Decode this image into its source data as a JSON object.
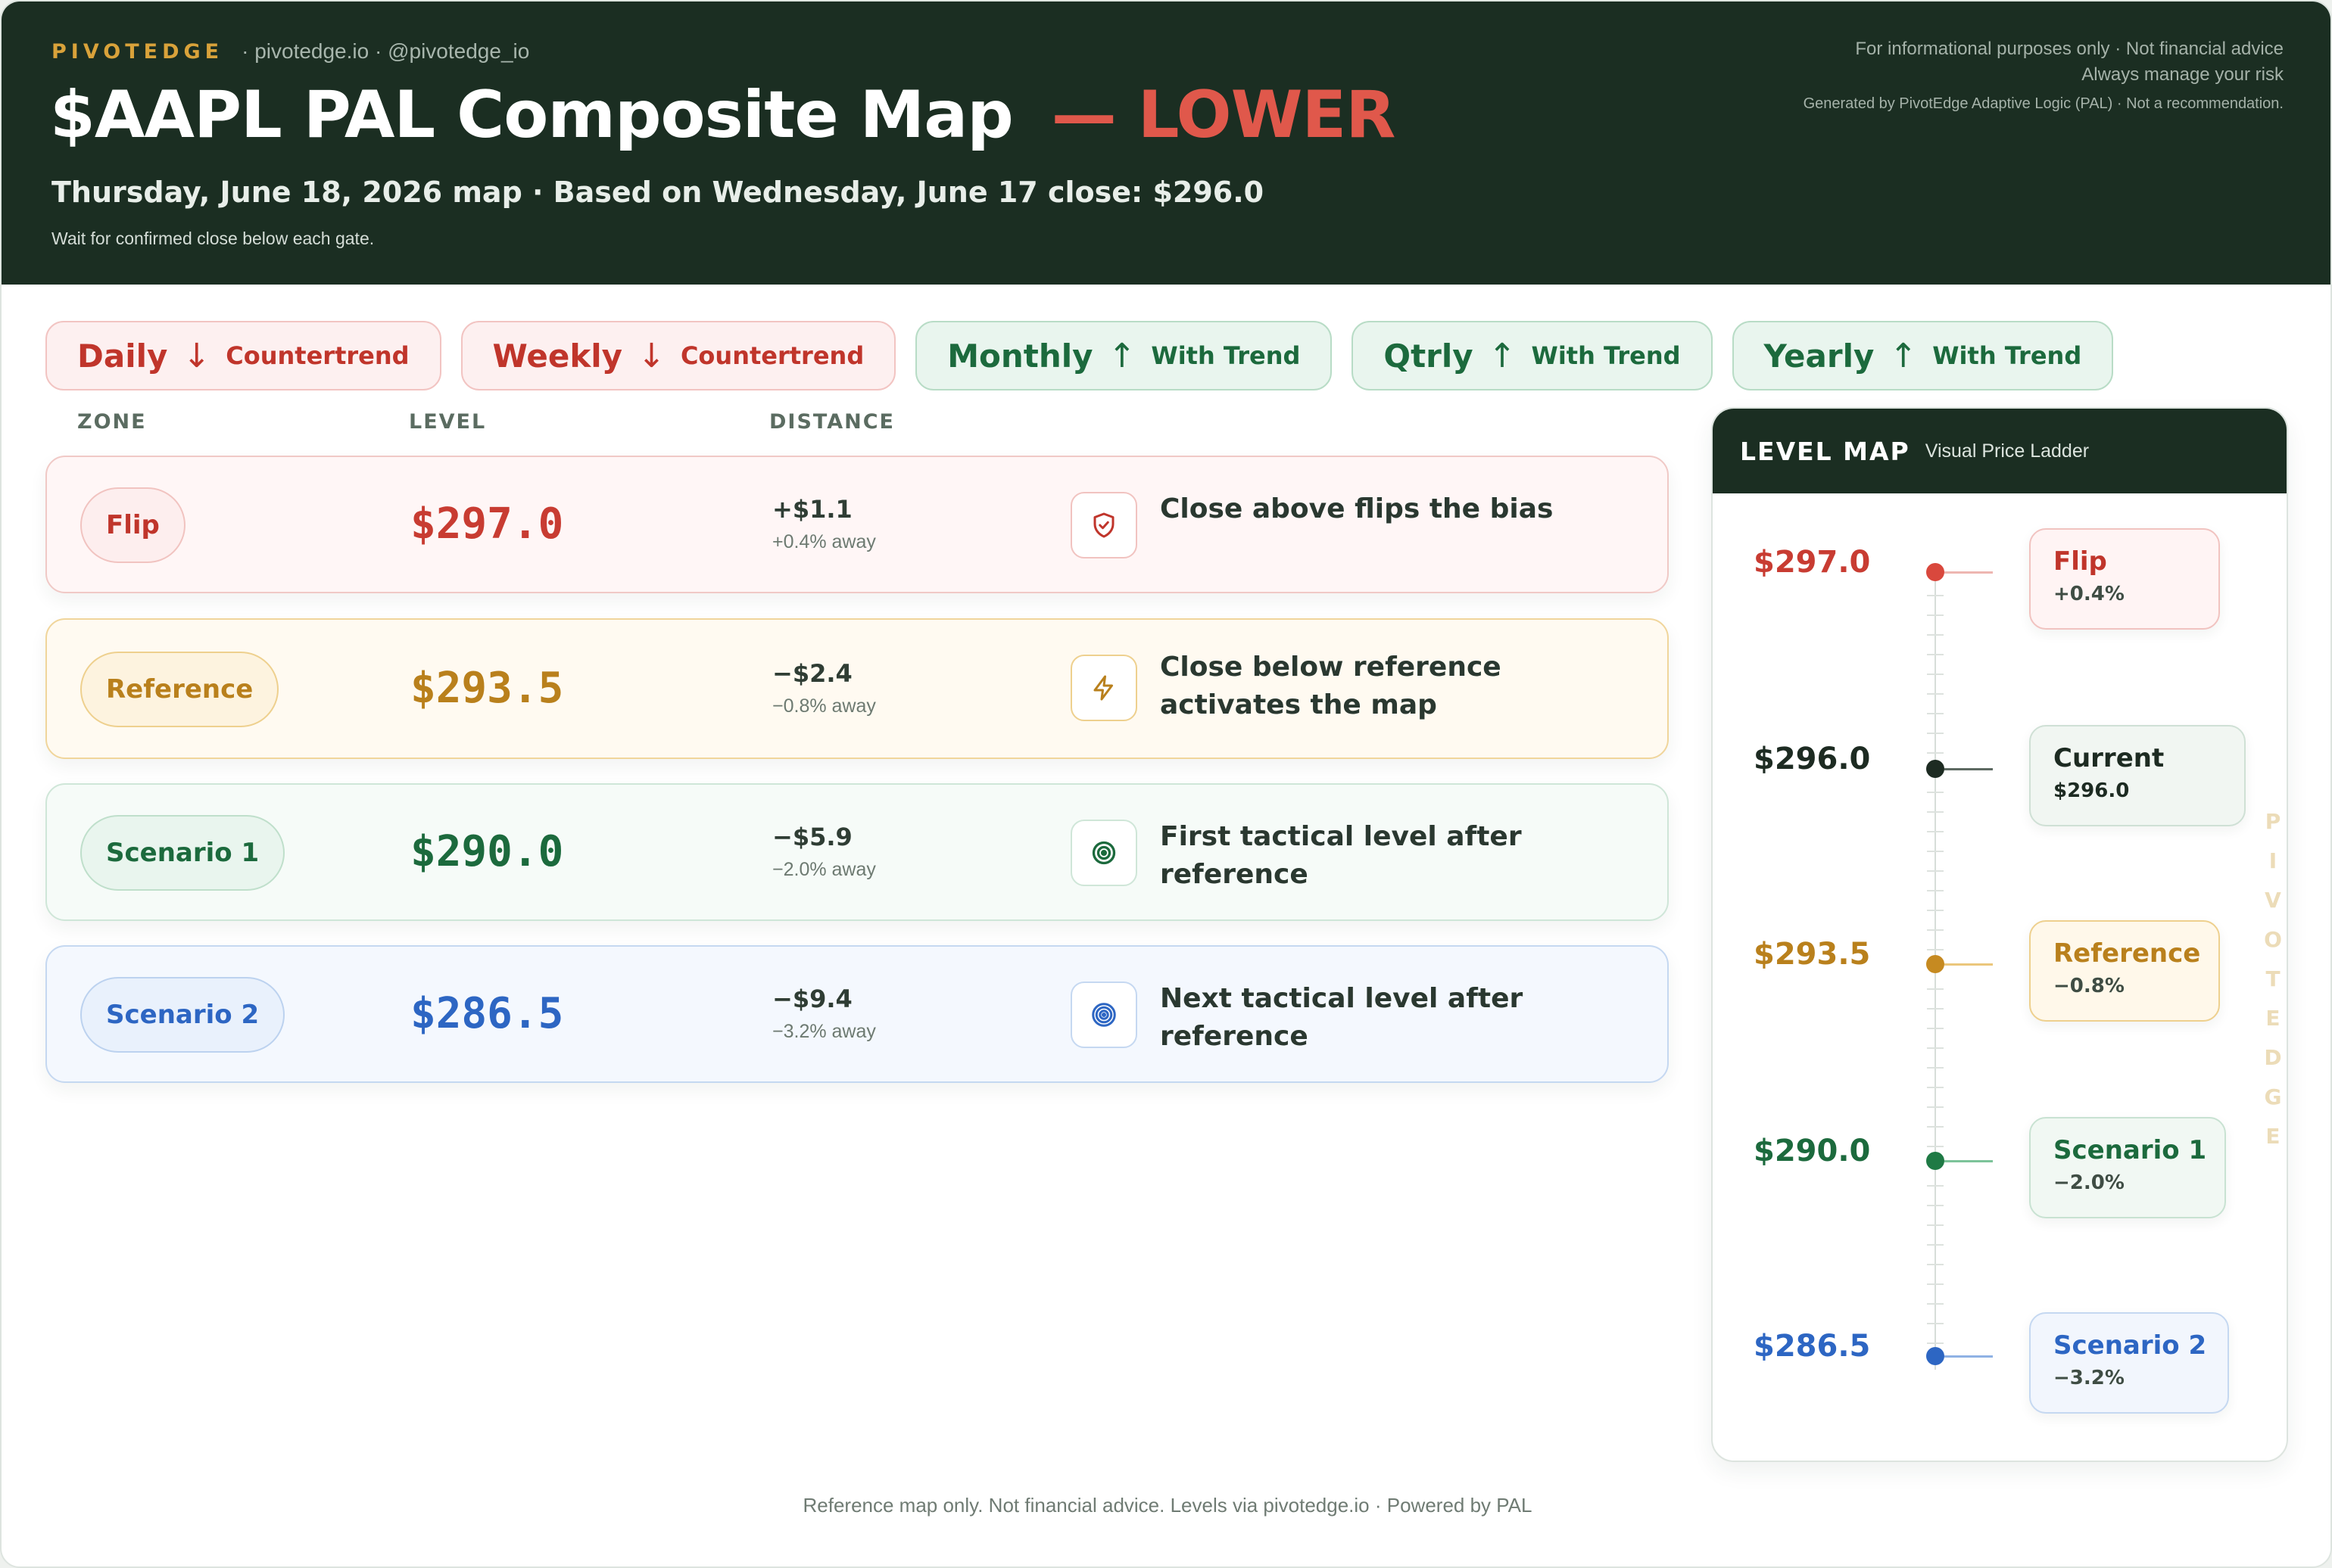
{
  "header": {
    "brand": "PIVOTEDGE",
    "handles": "· pivotedge.io · @pivotedge_io",
    "title": "$AAPL PAL Composite Map",
    "title_dash": "—",
    "bias": "LOWER",
    "subtitle": "Thursday, June 18, 2026 map · Based on Wednesday, June 17 close: $296.0",
    "instruction": "Wait for confirmed close below each gate.",
    "disclaimer_1": "For informational purposes only · Not financial advice",
    "disclaimer_2": "Always manage your risk",
    "disclaimer_3": "Generated by PivotEdge Adaptive Logic (PAL) · Not a recommendation."
  },
  "colors": {
    "header_bg": "#1b2e22",
    "accent_red": "#c0352b",
    "accent_gold": "#b9801c",
    "accent_green": "#1c6a3d",
    "accent_blue": "#2d66c3",
    "current_dark": "#1d2b22"
  },
  "timeframes": [
    {
      "label": "Daily",
      "arrow": "↓",
      "mode": "Countertrend",
      "direction": "down"
    },
    {
      "label": "Weekly",
      "arrow": "↓",
      "mode": "Countertrend",
      "direction": "down"
    },
    {
      "label": "Monthly",
      "arrow": "↑",
      "mode": "With Trend",
      "direction": "up"
    },
    {
      "label": "Qtrly",
      "arrow": "↑",
      "mode": "With Trend",
      "direction": "up"
    },
    {
      "label": "Yearly",
      "arrow": "↑",
      "mode": "With Trend",
      "direction": "up"
    }
  ],
  "table": {
    "headers": {
      "zone": "ZONE",
      "level": "LEVEL",
      "distance": "DISTANCE"
    },
    "rows": [
      {
        "zone": "Flip",
        "level": "$297.0",
        "distance": "+$1.1",
        "pct": "+0.4% away",
        "icon": "shield-icon",
        "note": "Close above flips the bias"
      },
      {
        "zone": "Reference",
        "level": "$293.5",
        "distance": "−$2.4",
        "pct": "−0.8% away",
        "icon": "lightning-icon",
        "note": "Close below reference activates the map"
      },
      {
        "zone": "Scenario 1",
        "level": "$290.0",
        "distance": "−$5.9",
        "pct": "−2.0% away",
        "icon": "target-icon",
        "note": "First tactical level after reference"
      },
      {
        "zone": "Scenario 2",
        "level": "$286.5",
        "distance": "−$9.4",
        "pct": "−3.2% away",
        "icon": "bullseye-icon",
        "note": "Next tactical level after reference"
      }
    ]
  },
  "level_map": {
    "title": "LEVEL MAP",
    "subtitle": "Visual Price Ladder",
    "watermark": "PIVOTEDGE",
    "levels": [
      {
        "price": "$297.0",
        "name": "Flip",
        "sub": "+0.4%"
      },
      {
        "price": "$296.0",
        "name": "Current",
        "sub": "$296.0"
      },
      {
        "price": "$293.5",
        "name": "Reference",
        "sub": "−0.8%"
      },
      {
        "price": "$290.0",
        "name": "Scenario 1",
        "sub": "−2.0%"
      },
      {
        "price": "$286.5",
        "name": "Scenario 2",
        "sub": "−3.2%"
      }
    ]
  },
  "footer": "Reference map only. Not financial advice. Levels via pivotedge.io · Powered by PAL"
}
